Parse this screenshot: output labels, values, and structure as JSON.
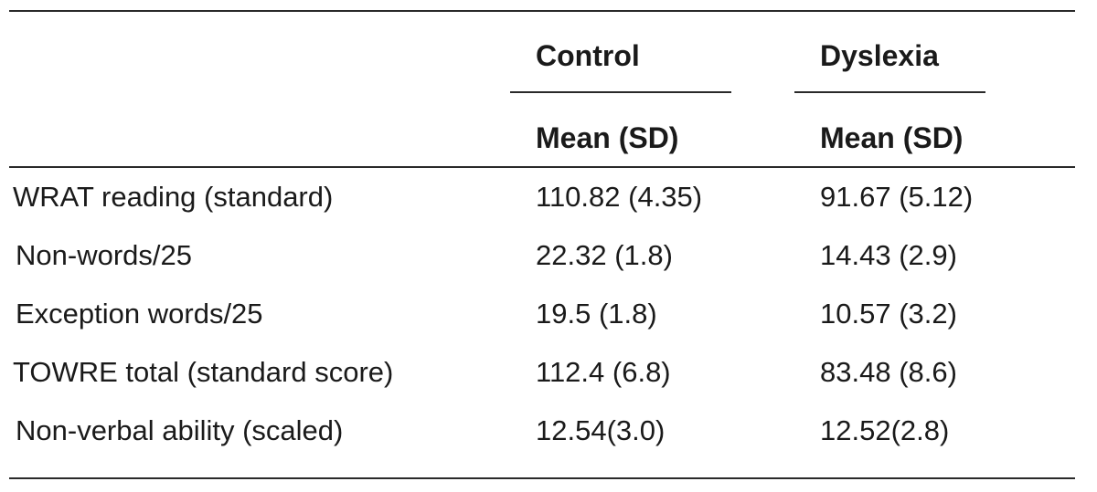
{
  "table": {
    "groups": {
      "control": "Control",
      "dyslexia": "Dyslexia"
    },
    "subheaders": {
      "control": "Mean (SD)",
      "dyslexia": "Mean (SD)"
    },
    "rows": [
      {
        "label": "WRAT reading (standard)",
        "control": "110.82 (4.35)",
        "dyslexia": "91.67 (5.12)"
      },
      {
        "label": "Non-words/25",
        "control": "22.32 (1.8)",
        "dyslexia": "14.43 (2.9)"
      },
      {
        "label": "Exception words/25",
        "control": "19.5 (1.8)",
        "dyslexia": "10.57 (3.2)"
      },
      {
        "label": "TOWRE total (standard score)",
        "control": "112.4 (6.8)",
        "dyslexia": "83.48 (8.6)"
      },
      {
        "label": "Non-verbal ability (scaled)",
        "control": "12.54(3.0)",
        "dyslexia": "12.52(2.8)"
      }
    ]
  }
}
